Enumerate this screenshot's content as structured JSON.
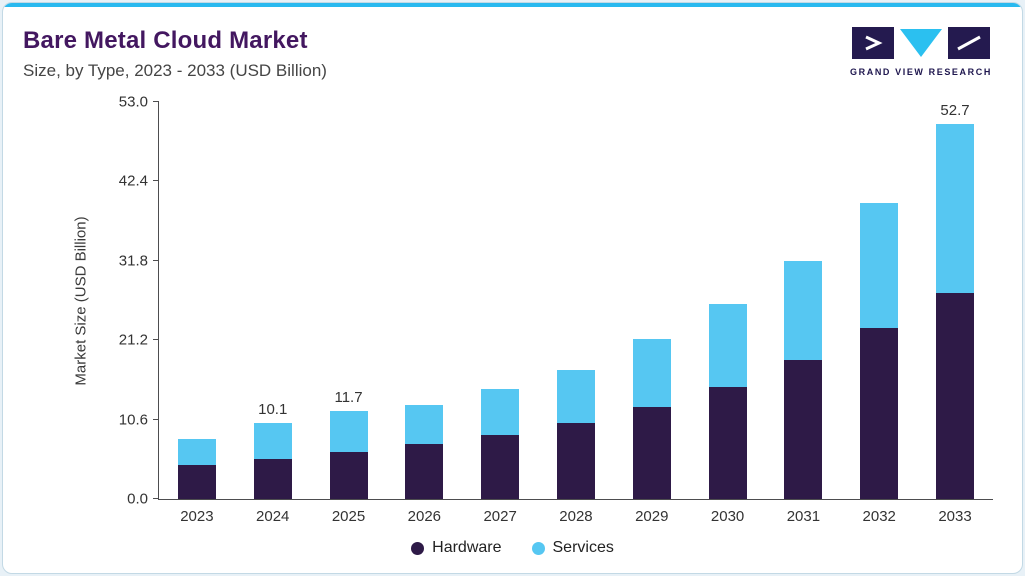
{
  "header": {
    "title": "Bare Metal Cloud Market",
    "subtitle": "Size, by Type, 2023 - 2033 (USD Billion)"
  },
  "logo": {
    "text": "GRAND VIEW RESEARCH"
  },
  "chart_data": {
    "type": "bar",
    "stacked": true,
    "title": "Bare Metal Cloud Market Size, by Type, 2023 - 2033 (USD Billion)",
    "categories": [
      "2023",
      "2024",
      "2025",
      "2026",
      "2027",
      "2028",
      "2029",
      "2030",
      "2031",
      "2032",
      "2033"
    ],
    "series": [
      {
        "name": "Hardware",
        "color": "#2e1a47",
        "values": [
          4.5,
          5.4,
          6.3,
          7.3,
          8.6,
          10.2,
          12.3,
          15.0,
          18.5,
          22.8,
          29.0
        ]
      },
      {
        "name": "Services",
        "color": "#56c7f2",
        "values": [
          3.5,
          4.7,
          5.4,
          5.2,
          6.1,
          7.0,
          9.0,
          11.0,
          13.3,
          16.7,
          23.7
        ]
      }
    ],
    "totals": [
      8.0,
      10.1,
      11.7,
      12.5,
      14.7,
      17.2,
      21.3,
      26.0,
      31.8,
      39.5,
      52.7
    ],
    "bar_labels": [
      "",
      "10.1",
      "11.7",
      "",
      "",
      "",
      "",
      "",
      "",
      "",
      "52.7"
    ],
    "xlabel": "",
    "ylabel": "Market Size (USD Billion)",
    "yticks": [
      0.0,
      10.6,
      21.2,
      31.8,
      42.4,
      53.0
    ],
    "ylim": [
      0,
      53.0
    ],
    "grid": false,
    "legend_position": "bottom"
  },
  "colors": {
    "accent_bar": "#29b9ef",
    "title_text": "#431760",
    "hardware": "#2e1a47",
    "services": "#56c7f2",
    "axis": "#4d4d4f",
    "page_background": "#e8f1f7",
    "card_border": "#c3d9e5"
  }
}
